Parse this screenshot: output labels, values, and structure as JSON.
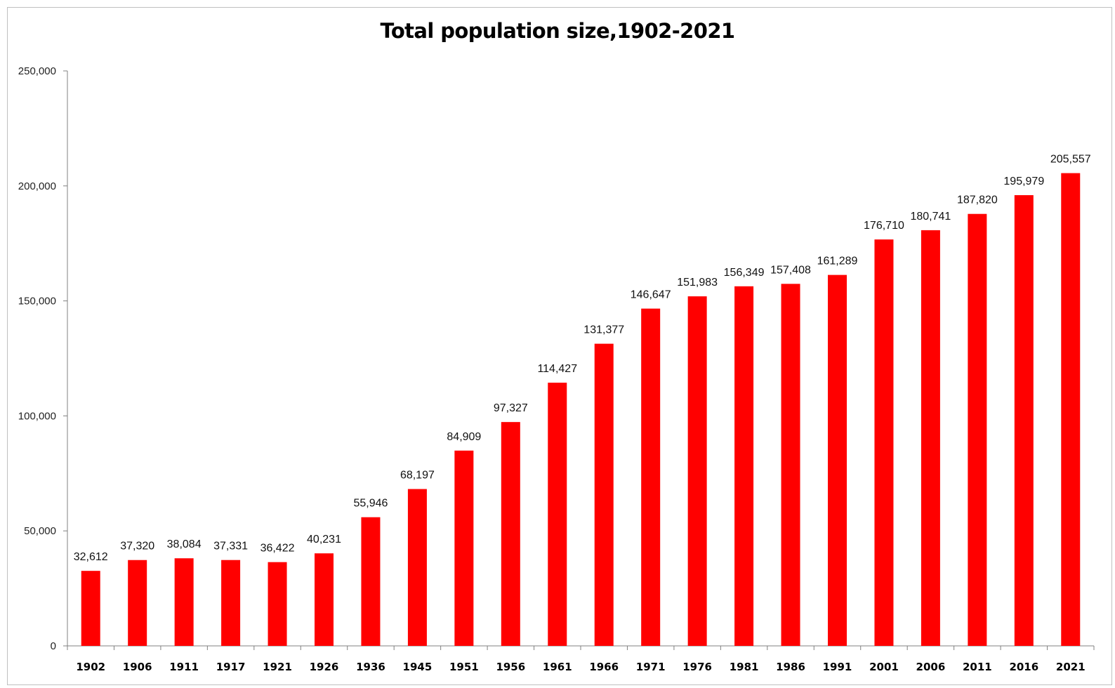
{
  "chart_data": {
    "type": "bar",
    "title": "Total population size,1902-2021",
    "xlabel": "",
    "ylabel": "",
    "categories": [
      "1902",
      "1906",
      "1911",
      "1917",
      "1921",
      "1926",
      "1936",
      "1945",
      "1951",
      "1956",
      "1961",
      "1966",
      "1971",
      "1976",
      "1981",
      "1986",
      "1991",
      "2001",
      "2006",
      "2011",
      "2016",
      "2021"
    ],
    "values": [
      32612,
      37320,
      38084,
      37331,
      36422,
      40231,
      55946,
      68197,
      84909,
      97327,
      114427,
      131377,
      146647,
      151983,
      156349,
      157408,
      161289,
      176710,
      180741,
      187820,
      195979,
      205557
    ],
    "value_labels": [
      "32,612",
      "37,320",
      "38,084",
      "37,331",
      "36,422",
      "40,231",
      "55,946",
      "68,197",
      "84,909",
      "97,327",
      "114,427",
      "131,377",
      "146,647",
      "151,983",
      "156,349",
      "157,408",
      "161,289",
      "176,710",
      "180,741",
      "187,820",
      "195,979",
      "205,557"
    ],
    "y_ticks": [
      0,
      50000,
      100000,
      150000,
      200000,
      250000
    ],
    "y_tick_labels": [
      "0",
      "50,000",
      "100,000",
      "150,000",
      "200,000",
      "250,000"
    ],
    "ylim": [
      0,
      250000
    ],
    "grid": false,
    "legend": "none",
    "bar_color": "#ff0000",
    "axis_color": "#808080"
  }
}
